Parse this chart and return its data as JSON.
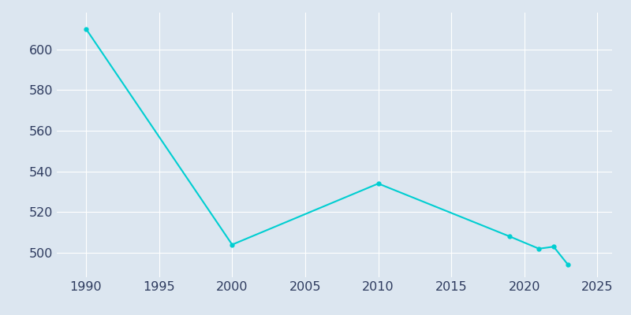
{
  "years": [
    1990,
    2000,
    2010,
    2019,
    2021,
    2022,
    2023
  ],
  "population": [
    610,
    504,
    534,
    508,
    502,
    503,
    494
  ],
  "line_color": "#00CED1",
  "marker_color": "#00CED1",
  "bg_color": "#dce6f0",
  "grid_color": "#ffffff",
  "xlim": [
    1988,
    2026
  ],
  "ylim": [
    488,
    618
  ],
  "xticks": [
    1990,
    1995,
    2000,
    2005,
    2010,
    2015,
    2020,
    2025
  ],
  "yticks": [
    500,
    520,
    540,
    560,
    580,
    600
  ],
  "tick_label_color": "#2d3a5e",
  "tick_fontsize": 11.5
}
